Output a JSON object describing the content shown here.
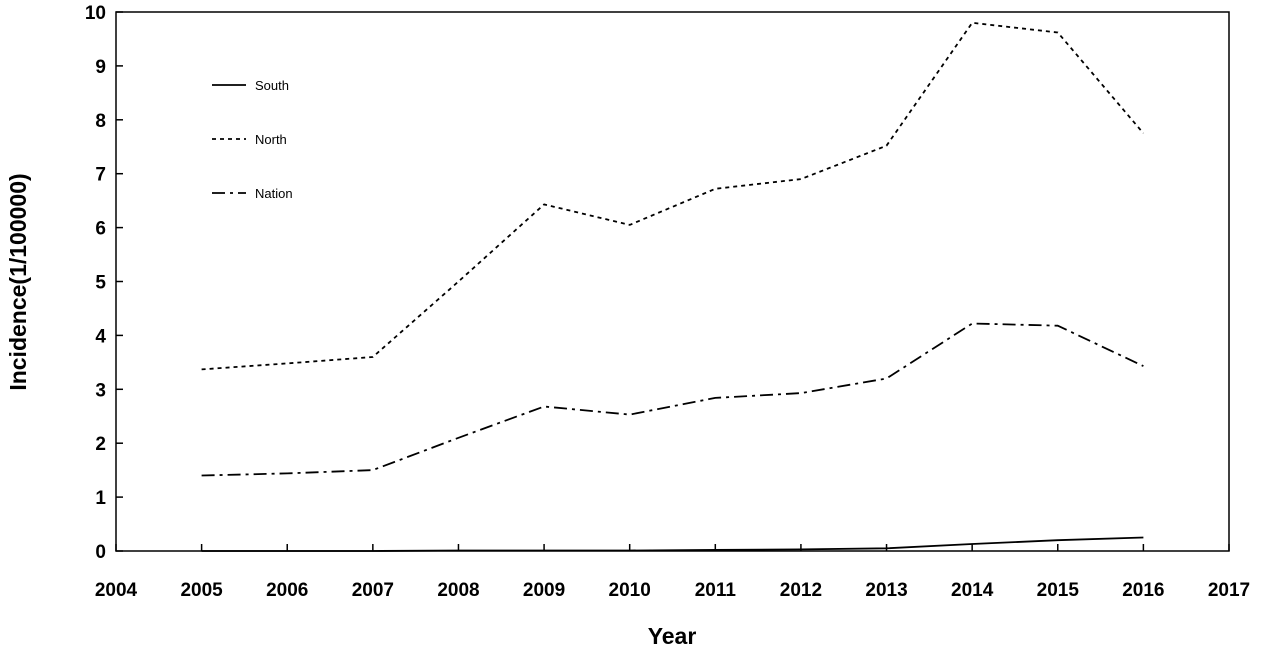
{
  "chart_data": {
    "type": "line",
    "title": "",
    "xlabel": "Year",
    "ylabel": "Incidence(1/100000)",
    "xlim": [
      2004,
      2017
    ],
    "ylim": [
      0,
      10
    ],
    "xticks": [
      2004,
      2005,
      2006,
      2007,
      2008,
      2009,
      2010,
      2011,
      2012,
      2013,
      2014,
      2015,
      2016,
      2017
    ],
    "yticks": [
      0,
      1,
      2,
      3,
      4,
      5,
      6,
      7,
      8,
      9,
      10
    ],
    "grid": false,
    "legend_position": "top-left",
    "x": [
      2005,
      2006,
      2007,
      2008,
      2009,
      2010,
      2011,
      2012,
      2013,
      2014,
      2015,
      2016
    ],
    "series": [
      {
        "name": "South",
        "line_style": "solid",
        "color": "#000000",
        "values": [
          0.0,
          0.0,
          0.0,
          0.01,
          0.01,
          0.01,
          0.02,
          0.03,
          0.05,
          0.13,
          0.2,
          0.25
        ]
      },
      {
        "name": "North",
        "line_style": "dotted",
        "color": "#000000",
        "values": [
          3.37,
          3.48,
          3.6,
          5.0,
          6.43,
          6.05,
          6.72,
          6.9,
          7.52,
          9.8,
          9.62,
          7.75
        ]
      },
      {
        "name": "Nation",
        "line_style": "dash-dot",
        "color": "#000000",
        "values": [
          1.4,
          1.44,
          1.5,
          2.1,
          2.68,
          2.53,
          2.84,
          2.93,
          3.2,
          4.22,
          4.18,
          3.43
        ]
      }
    ]
  }
}
